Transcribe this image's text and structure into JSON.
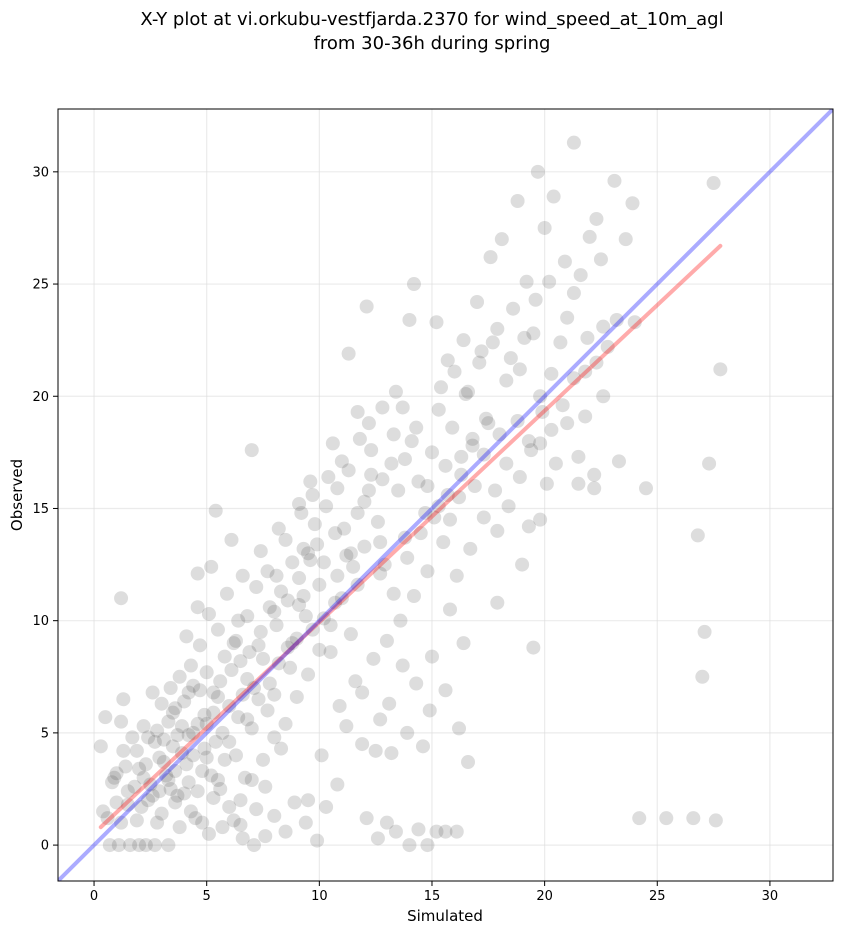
{
  "chart_data": {
    "type": "scatter",
    "title_lines": [
      "X-Y plot at vi.orkubu-vestfjarda.2370 for wind_speed_at_10m_agl",
      "from 30-36h during spring"
    ],
    "xlabel": "Simulated",
    "ylabel": "Observed",
    "xlim": [
      -1.6,
      32.8
    ],
    "ylim": [
      -1.6,
      32.8
    ],
    "xticks": [
      0,
      5,
      10,
      15,
      20,
      25,
      30
    ],
    "yticks": [
      0,
      5,
      10,
      15,
      20,
      25,
      30
    ],
    "grid": true,
    "colors": {
      "points": "#555555",
      "identity_line": "#0000ff",
      "fit_line": "#ff0000"
    },
    "identity_line": {
      "x": [
        -1.6,
        32.8
      ],
      "y": [
        -1.6,
        32.8
      ]
    },
    "fit_line": {
      "x": [
        0.3,
        27.8
      ],
      "y": [
        0.8,
        26.7
      ]
    },
    "points": [
      [
        0.3,
        4.4
      ],
      [
        0.5,
        5.7
      ],
      [
        0.4,
        1.5
      ],
      [
        1.2,
        11.0
      ],
      [
        1.3,
        6.5
      ],
      [
        1.2,
        5.5
      ],
      [
        1.0,
        3.2
      ],
      [
        0.8,
        2.8
      ],
      [
        1.5,
        1.8
      ],
      [
        0.7,
        0.0
      ],
      [
        1.1,
        0.0
      ],
      [
        1.6,
        0.0
      ],
      [
        2.0,
        0.0
      ],
      [
        2.3,
        0.0
      ],
      [
        2.7,
        0.0
      ],
      [
        3.3,
        0.0
      ],
      [
        1.9,
        4.2
      ],
      [
        2.4,
        4.8
      ],
      [
        2.2,
        3.0
      ],
      [
        2.8,
        5.1
      ],
      [
        3.1,
        3.7
      ],
      [
        3.4,
        2.5
      ],
      [
        3.6,
        1.9
      ],
      [
        3.9,
        4.1
      ],
      [
        4.2,
        2.8
      ],
      [
        4.0,
        6.4
      ],
      [
        4.5,
        1.2
      ],
      [
        4.8,
        3.3
      ],
      [
        5.1,
        0.5
      ],
      [
        5.3,
        2.1
      ],
      [
        3.8,
        7.5
      ],
      [
        4.3,
        8.0
      ],
      [
        4.7,
        6.9
      ],
      [
        5.0,
        5.4
      ],
      [
        5.4,
        4.6
      ],
      [
        5.6,
        7.3
      ],
      [
        6.0,
        6.2
      ],
      [
        5.8,
        3.8
      ],
      [
        6.2,
        9.0
      ],
      [
        6.5,
        8.2
      ],
      [
        6.8,
        5.6
      ],
      [
        7.1,
        7.0
      ],
      [
        7.4,
        9.5
      ],
      [
        7.7,
        6.0
      ],
      [
        8.0,
        10.4
      ],
      [
        4.6,
        12.1
      ],
      [
        5.2,
        12.4
      ],
      [
        5.4,
        14.9
      ],
      [
        6.1,
        13.6
      ],
      [
        7.0,
        17.6
      ],
      [
        3.2,
        3.1
      ],
      [
        3.5,
        4.4
      ],
      [
        3.7,
        2.2
      ],
      [
        4.1,
        3.6
      ],
      [
        4.4,
        5.0
      ],
      [
        4.9,
        4.3
      ],
      [
        2.6,
        2.2
      ],
      [
        2.9,
        3.9
      ],
      [
        3.0,
        1.4
      ],
      [
        1.8,
        2.6
      ],
      [
        2.1,
        1.7
      ],
      [
        1.4,
        3.5
      ],
      [
        3.6,
        6.1
      ],
      [
        4.2,
        4.9
      ],
      [
        4.6,
        2.4
      ],
      [
        5.0,
        7.7
      ],
      [
        5.5,
        6.6
      ],
      [
        6.3,
        4.0
      ],
      [
        6.7,
        3.0
      ],
      [
        7.2,
        1.6
      ],
      [
        7.6,
        2.6
      ],
      [
        8.3,
        4.3
      ],
      [
        8.7,
        7.9
      ],
      [
        9.0,
        9.2
      ],
      [
        9.3,
        11.1
      ],
      [
        9.6,
        12.7
      ],
      [
        9.9,
        13.4
      ],
      [
        10.2,
        10.1
      ],
      [
        10.5,
        8.6
      ],
      [
        10.8,
        12.0
      ],
      [
        11.1,
        14.1
      ],
      [
        11.4,
        13.0
      ],
      [
        11.7,
        11.6
      ],
      [
        12.0,
        15.3
      ],
      [
        12.3,
        16.5
      ],
      [
        12.6,
        14.4
      ],
      [
        12.9,
        12.5
      ],
      [
        13.2,
        17.0
      ],
      [
        13.5,
        15.8
      ],
      [
        13.8,
        13.7
      ],
      [
        14.1,
        18.0
      ],
      [
        14.4,
        16.2
      ],
      [
        14.7,
        14.8
      ],
      [
        15.0,
        17.5
      ],
      [
        15.3,
        19.4
      ],
      [
        15.6,
        16.9
      ],
      [
        15.9,
        18.6
      ],
      [
        16.2,
        15.5
      ],
      [
        16.5,
        20.1
      ],
      [
        16.8,
        17.8
      ],
      [
        17.1,
        21.5
      ],
      [
        17.4,
        19.0
      ],
      [
        17.7,
        22.4
      ],
      [
        18.0,
        18.3
      ],
      [
        18.3,
        20.7
      ],
      [
        18.6,
        23.9
      ],
      [
        18.9,
        21.2
      ],
      [
        19.2,
        25.1
      ],
      [
        19.5,
        22.8
      ],
      [
        19.8,
        20.0
      ],
      [
        8.1,
        12.0
      ],
      [
        8.5,
        13.6
      ],
      [
        9.2,
        14.8
      ],
      [
        9.7,
        15.6
      ],
      [
        10.4,
        16.4
      ],
      [
        11.0,
        17.1
      ],
      [
        11.3,
        21.9
      ],
      [
        12.1,
        24.0
      ],
      [
        12.8,
        19.5
      ],
      [
        13.4,
        20.2
      ],
      [
        14.2,
        25.0
      ],
      [
        14.0,
        23.4
      ],
      [
        15.2,
        23.3
      ],
      [
        15.7,
        21.6
      ],
      [
        16.4,
        22.5
      ],
      [
        17.0,
        24.2
      ],
      [
        17.6,
        26.2
      ],
      [
        18.1,
        27.0
      ],
      [
        18.8,
        28.7
      ],
      [
        19.7,
        30.0
      ],
      [
        20.0,
        27.5
      ],
      [
        20.4,
        28.9
      ],
      [
        21.3,
        31.3
      ],
      [
        22.0,
        27.1
      ],
      [
        22.3,
        27.9
      ],
      [
        23.1,
        29.6
      ],
      [
        23.6,
        27.0
      ],
      [
        23.9,
        28.6
      ],
      [
        24.0,
        23.3
      ],
      [
        22.5,
        26.1
      ],
      [
        21.6,
        25.4
      ],
      [
        21.0,
        23.5
      ],
      [
        20.7,
        22.4
      ],
      [
        20.3,
        21.0
      ],
      [
        19.9,
        19.3
      ],
      [
        19.4,
        17.6
      ],
      [
        18.9,
        16.4
      ],
      [
        18.4,
        15.1
      ],
      [
        17.9,
        14.0
      ],
      [
        19.0,
        12.5
      ],
      [
        19.3,
        14.2
      ],
      [
        19.8,
        14.5
      ],
      [
        20.1,
        16.1
      ],
      [
        20.5,
        17.0
      ],
      [
        21.0,
        18.8
      ],
      [
        21.5,
        17.3
      ],
      [
        21.8,
        19.1
      ],
      [
        22.2,
        16.5
      ],
      [
        22.6,
        20.0
      ],
      [
        23.3,
        17.1
      ],
      [
        21.5,
        16.1
      ],
      [
        22.2,
        15.9
      ],
      [
        24.5,
        15.9
      ],
      [
        24.2,
        1.2
      ],
      [
        25.4,
        1.2
      ],
      [
        26.6,
        1.2
      ],
      [
        27.6,
        1.1
      ],
      [
        27.0,
        7.5
      ],
      [
        27.1,
        9.5
      ],
      [
        26.8,
        13.8
      ],
      [
        27.3,
        17.0
      ],
      [
        27.8,
        21.2
      ],
      [
        27.5,
        29.5
      ],
      [
        19.5,
        8.8
      ],
      [
        16.6,
        3.7
      ],
      [
        16.2,
        5.2
      ],
      [
        15.6,
        6.9
      ],
      [
        14.9,
        6.0
      ],
      [
        14.6,
        4.4
      ],
      [
        13.9,
        5.0
      ],
      [
        13.2,
        4.1
      ],
      [
        12.5,
        4.2
      ],
      [
        11.9,
        4.5
      ],
      [
        11.2,
        5.3
      ],
      [
        10.8,
        2.7
      ],
      [
        10.3,
        1.7
      ],
      [
        9.9,
        0.2
      ],
      [
        9.4,
        1.0
      ],
      [
        8.9,
        1.9
      ],
      [
        8.5,
        0.6
      ],
      [
        8.0,
        1.3
      ],
      [
        7.6,
        0.4
      ],
      [
        7.1,
        0.0
      ],
      [
        6.6,
        0.3
      ],
      [
        6.2,
        1.1
      ],
      [
        5.7,
        0.8
      ],
      [
        12.1,
        1.2
      ],
      [
        12.6,
        0.3
      ],
      [
        13.0,
        1.0
      ],
      [
        13.4,
        0.6
      ],
      [
        14.4,
        0.7
      ],
      [
        15.2,
        0.6
      ],
      [
        15.6,
        0.6
      ],
      [
        16.1,
        0.6
      ],
      [
        14.8,
        0.0
      ],
      [
        14.0,
        0.0
      ],
      [
        9.5,
        2.0
      ],
      [
        10.1,
        4.0
      ],
      [
        10.9,
        6.2
      ],
      [
        11.6,
        7.3
      ],
      [
        12.4,
        8.3
      ],
      [
        13.0,
        9.1
      ],
      [
        13.6,
        10.0
      ],
      [
        14.2,
        11.1
      ],
      [
        14.8,
        12.2
      ],
      [
        15.5,
        13.5
      ],
      [
        16.1,
        12.0
      ],
      [
        16.7,
        13.2
      ],
      [
        17.3,
        14.6
      ],
      [
        17.9,
        10.8
      ],
      [
        16.4,
        9.0
      ],
      [
        15.8,
        10.5
      ],
      [
        15.0,
        8.4
      ],
      [
        14.3,
        7.2
      ],
      [
        13.7,
        8.0
      ],
      [
        13.1,
        6.3
      ],
      [
        12.7,
        5.6
      ],
      [
        11.9,
        6.8
      ],
      [
        11.4,
        9.4
      ],
      [
        10.7,
        10.8
      ],
      [
        10.0,
        11.6
      ],
      [
        9.4,
        10.2
      ],
      [
        8.8,
        9.0
      ],
      [
        8.2,
        8.1
      ],
      [
        7.8,
        7.2
      ],
      [
        7.3,
        6.5
      ],
      [
        6.9,
        8.6
      ],
      [
        6.4,
        10.0
      ],
      [
        5.9,
        11.2
      ],
      [
        5.5,
        9.6
      ],
      [
        5.1,
        10.3
      ],
      [
        4.7,
        8.9
      ],
      [
        4.4,
        7.1
      ],
      [
        3.9,
        5.3
      ],
      [
        3.5,
        5.9
      ],
      [
        3.0,
        6.3
      ],
      [
        2.7,
        4.6
      ],
      [
        2.4,
        2.0
      ],
      [
        2.0,
        3.4
      ],
      [
        1.7,
        4.8
      ],
      [
        1.5,
        2.4
      ],
      [
        1.2,
        1.0
      ],
      [
        0.9,
        3.0
      ],
      [
        2.2,
        5.3
      ],
      [
        2.8,
        1.0
      ],
      [
        3.3,
        2.9
      ],
      [
        3.8,
        0.8
      ],
      [
        4.3,
        1.5
      ],
      [
        4.8,
        1.0
      ],
      [
        5.2,
        3.1
      ],
      [
        5.6,
        2.5
      ],
      [
        6.0,
        4.6
      ],
      [
        6.4,
        5.7
      ],
      [
        6.8,
        7.4
      ],
      [
        7.3,
        8.9
      ],
      [
        7.8,
        10.6
      ],
      [
        8.3,
        11.3
      ],
      [
        8.8,
        12.6
      ],
      [
        9.3,
        13.2
      ],
      [
        9.8,
        14.3
      ],
      [
        10.3,
        15.1
      ],
      [
        10.8,
        15.9
      ],
      [
        11.3,
        16.7
      ],
      [
        11.8,
        18.1
      ],
      [
        12.3,
        17.6
      ],
      [
        12.8,
        16.3
      ],
      [
        13.3,
        18.3
      ],
      [
        13.8,
        17.2
      ],
      [
        14.3,
        18.6
      ],
      [
        14.8,
        16.0
      ],
      [
        15.3,
        15.1
      ],
      [
        15.8,
        14.5
      ],
      [
        16.3,
        16.5
      ],
      [
        16.8,
        18.1
      ],
      [
        17.3,
        17.4
      ],
      [
        17.8,
        15.8
      ],
      [
        18.3,
        17.0
      ],
      [
        18.8,
        18.9
      ],
      [
        19.3,
        18.0
      ],
      [
        19.8,
        17.9
      ],
      [
        20.3,
        18.5
      ],
      [
        20.8,
        19.6
      ],
      [
        21.3,
        20.8
      ],
      [
        21.8,
        21.1
      ],
      [
        22.3,
        21.5
      ],
      [
        22.8,
        22.2
      ],
      [
        12.0,
        13.3
      ],
      [
        12.7,
        12.1
      ],
      [
        13.3,
        11.2
      ],
      [
        13.9,
        12.8
      ],
      [
        14.5,
        13.9
      ],
      [
        15.1,
        14.6
      ],
      [
        15.7,
        15.6
      ],
      [
        16.3,
        17.3
      ],
      [
        16.9,
        16.0
      ],
      [
        17.5,
        18.8
      ],
      [
        11.5,
        12.4
      ],
      [
        11.0,
        11.0
      ],
      [
        10.5,
        9.8
      ],
      [
        10.0,
        8.7
      ],
      [
        9.5,
        7.6
      ],
      [
        9.0,
        6.6
      ],
      [
        8.5,
        5.4
      ],
      [
        8.0,
        4.8
      ],
      [
        7.5,
        3.8
      ],
      [
        7.0,
        2.9
      ],
      [
        6.5,
        2.0
      ],
      [
        3.4,
        7.0
      ],
      [
        2.6,
        6.8
      ],
      [
        4.1,
        9.3
      ],
      [
        4.6,
        10.6
      ],
      [
        6.6,
        12.0
      ],
      [
        7.4,
        13.1
      ],
      [
        8.2,
        14.1
      ],
      [
        9.1,
        15.2
      ],
      [
        9.6,
        16.2
      ],
      [
        10.6,
        17.9
      ],
      [
        12.2,
        18.8
      ],
      [
        11.7,
        19.3
      ],
      [
        13.7,
        19.5
      ],
      [
        15.4,
        20.4
      ],
      [
        16.0,
        21.1
      ],
      [
        16.6,
        20.2
      ],
      [
        17.2,
        22.0
      ],
      [
        17.9,
        23.0
      ],
      [
        18.5,
        21.7
      ],
      [
        19.1,
        22.6
      ],
      [
        19.6,
        24.3
      ],
      [
        20.2,
        25.1
      ],
      [
        20.9,
        26.0
      ],
      [
        21.3,
        24.6
      ],
      [
        21.9,
        22.6
      ],
      [
        22.6,
        23.1
      ],
      [
        23.2,
        23.4
      ],
      [
        5.3,
        5.9
      ],
      [
        5.7,
        5.0
      ],
      [
        6.1,
        7.8
      ],
      [
        6.6,
        6.7
      ],
      [
        7.0,
        5.2
      ],
      [
        7.5,
        8.3
      ],
      [
        8.0,
        6.7
      ],
      [
        8.6,
        8.8
      ],
      [
        9.1,
        10.7
      ],
      [
        9.7,
        9.6
      ],
      [
        10.2,
        12.6
      ],
      [
        10.7,
        13.9
      ],
      [
        11.2,
        12.9
      ],
      [
        11.7,
        14.8
      ],
      [
        12.2,
        15.8
      ],
      [
        12.7,
        13.5
      ],
      [
        3.1,
        4.7
      ],
      [
        3.6,
        3.3
      ],
      [
        4.0,
        2.3
      ],
      [
        4.4,
        4.0
      ],
      [
        4.9,
        5.8
      ],
      [
        5.3,
        6.8
      ],
      [
        5.8,
        8.4
      ],
      [
        6.3,
        9.1
      ],
      [
        6.8,
        10.2
      ],
      [
        7.2,
        11.5
      ],
      [
        7.7,
        12.2
      ],
      [
        8.1,
        9.8
      ],
      [
        8.6,
        10.9
      ],
      [
        9.1,
        11.9
      ],
      [
        9.5,
        13.0
      ],
      [
        2.3,
        3.6
      ],
      [
        2.5,
        2.7
      ],
      [
        1.9,
        1.1
      ],
      [
        2.9,
        2.4
      ],
      [
        3.3,
        5.5
      ],
      [
        3.7,
        4.9
      ],
      [
        4.2,
        6.8
      ],
      [
        4.6,
        5.4
      ],
      [
        5.0,
        3.9
      ],
      [
        5.5,
        2.9
      ],
      [
        6.0,
        1.7
      ],
      [
        6.5,
        0.9
      ],
      [
        0.6,
        1.2
      ],
      [
        1.0,
        1.9
      ],
      [
        1.3,
        4.2
      ]
    ]
  }
}
